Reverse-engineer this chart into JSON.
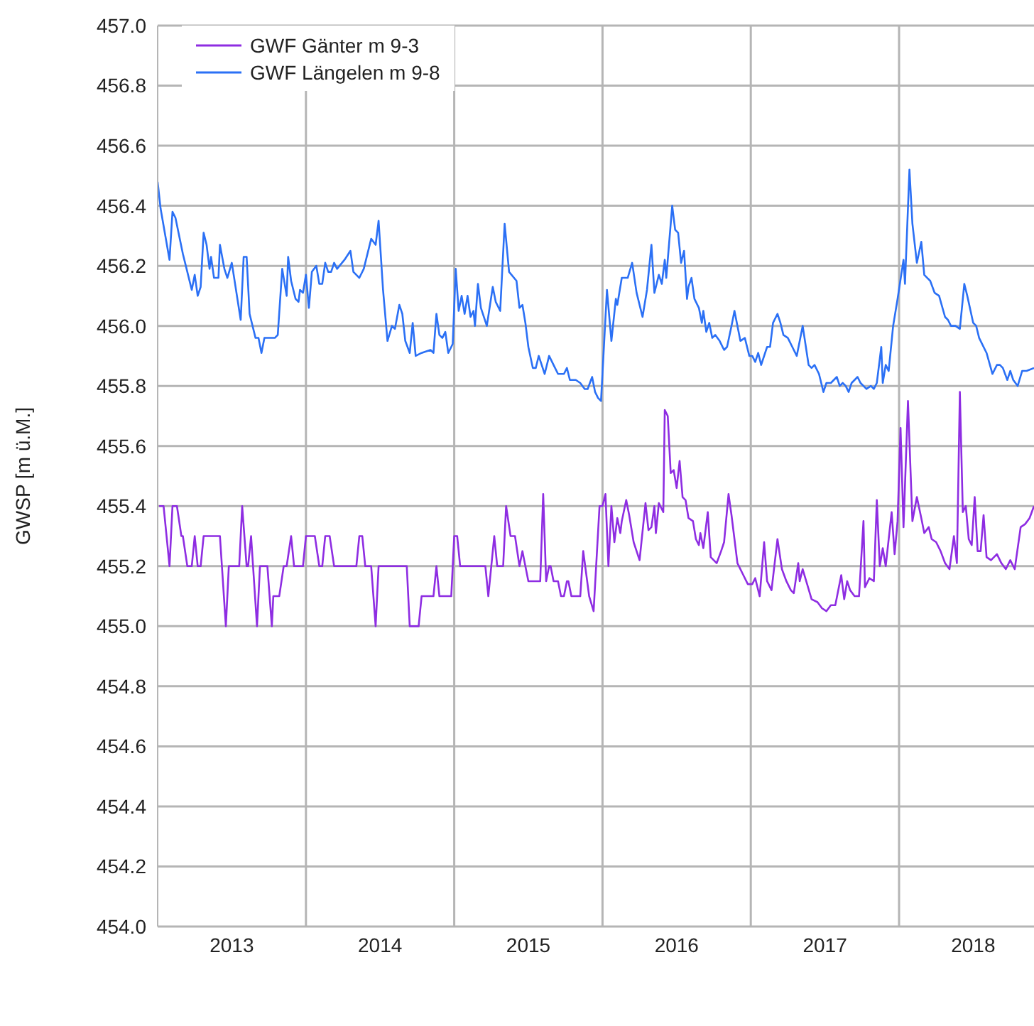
{
  "chart_data": {
    "type": "line",
    "ylabel": "GWSP  [m ü.M.]",
    "legend": "top left",
    "grid": true,
    "xlim": [
      2013,
      2018.91
    ],
    "ylim": [
      454,
      457
    ],
    "xticks": [
      {
        "value": 2013.5,
        "label": "2013"
      },
      {
        "value": 2014,
        "label": null
      },
      {
        "value": 2014.5,
        "label": "2014"
      },
      {
        "value": 2015,
        "label": null
      },
      {
        "value": 2015.5,
        "label": "2015"
      },
      {
        "value": 2016,
        "label": null
      },
      {
        "value": 2016.5,
        "label": "2016"
      },
      {
        "value": 2017,
        "label": null
      },
      {
        "value": 2017.5,
        "label": "2017"
      },
      {
        "value": 2018,
        "label": null
      },
      {
        "value": 2018.5,
        "label": "2018"
      }
    ],
    "yticks": [
      {
        "value": 454,
        "label": "454.0"
      },
      454.2,
      454.4,
      454.6,
      454.8,
      {
        "value": 455,
        "label": "455.0"
      },
      455.2,
      455.4,
      455.6,
      455.8,
      {
        "value": 456,
        "label": "456.0"
      },
      456.2,
      456.4,
      456.6,
      456.8,
      {
        "value": 457,
        "label": "457.0"
      }
    ],
    "series": [
      {
        "name": "GWF Gänter m 9-3",
        "color": "#8e2de2",
        "x": [
          2013.01,
          2013.04,
          2013.08,
          2013.1,
          2013.13,
          2013.16,
          2013.17,
          2013.2,
          2013.23,
          2013.25,
          2013.27,
          2013.29,
          2013.31,
          2013.42,
          2013.46,
          2013.48,
          2013.55,
          2013.57,
          2013.6,
          2013.61,
          2013.63,
          2013.67,
          2013.69,
          2013.74,
          2013.77,
          2013.78,
          2013.82,
          2013.85,
          2013.87,
          2013.9,
          2013.92,
          2013.98,
          2014.0,
          2014.06,
          2014.09,
          2014.11,
          2014.13,
          2014.16,
          2014.19,
          2014.34,
          2014.36,
          2014.38,
          2014.4,
          2014.44,
          2014.47,
          2014.49,
          2014.68,
          2014.7,
          2014.76,
          2014.78,
          2014.86,
          2014.88,
          2014.9,
          2014.98,
          2015.0,
          2015.02,
          2015.04,
          2015.21,
          2015.23,
          2015.27,
          2015.29,
          2015.33,
          2015.35,
          2015.38,
          2015.41,
          2015.44,
          2015.46,
          2015.5,
          2015.58,
          2015.6,
          2015.62,
          2015.64,
          2015.65,
          2015.67,
          2015.7,
          2015.72,
          2015.74,
          2015.76,
          2015.77,
          2015.79,
          2015.85,
          2015.87,
          2015.91,
          2015.94,
          2015.98,
          2016.0,
          2016.02,
          2016.04,
          2016.06,
          2016.08,
          2016.1,
          2016.12,
          2016.13,
          2016.16,
          2016.18,
          2016.21,
          2016.25,
          2016.29,
          2016.31,
          2016.33,
          2016.35,
          2016.36,
          2016.38,
          2016.41,
          2016.42,
          2016.44,
          2016.46,
          2016.48,
          2016.5,
          2016.52,
          2016.54,
          2016.56,
          2016.58,
          2016.61,
          2016.63,
          2016.65,
          2016.66,
          2016.68,
          2016.71,
          2016.73,
          2016.77,
          2016.8,
          2016.82,
          2016.85,
          2016.87,
          2016.91,
          2016.95,
          2016.98,
          2017.01,
          2017.03,
          2017.06,
          2017.09,
          2017.11,
          2017.14,
          2017.18,
          2017.21,
          2017.24,
          2017.27,
          2017.29,
          2017.32,
          2017.33,
          2017.35,
          2017.38,
          2017.41,
          2017.45,
          2017.48,
          2017.51,
          2017.54,
          2017.57,
          2017.61,
          2017.63,
          2017.65,
          2017.67,
          2017.7,
          2017.73,
          2017.76,
          2017.77,
          2017.8,
          2017.83,
          2017.85,
          2017.87,
          2017.89,
          2017.91,
          2017.95,
          2017.97,
          2017.99,
          2018.01,
          2018.03,
          2018.06,
          2018.09,
          2018.12,
          2018.15,
          2018.17,
          2018.2,
          2018.22,
          2018.25,
          2018.28,
          2018.31,
          2018.34,
          2018.37,
          2018.39,
          2018.41,
          2018.43,
          2018.45,
          2018.47,
          2018.49,
          2018.51,
          2018.53,
          2018.55,
          2018.57,
          2018.59,
          2018.62,
          2018.66,
          2018.69,
          2018.72,
          2018.75,
          2018.78,
          2018.82,
          2018.85,
          2018.88,
          2018.91
        ],
        "values": [
          455.4,
          455.4,
          455.2,
          455.4,
          455.4,
          455.3,
          455.3,
          455.2,
          455.2,
          455.3,
          455.2,
          455.2,
          455.3,
          455.3,
          455.0,
          455.2,
          455.2,
          455.4,
          455.2,
          455.2,
          455.3,
          455.0,
          455.2,
          455.2,
          455.0,
          455.1,
          455.1,
          455.2,
          455.2,
          455.3,
          455.2,
          455.2,
          455.3,
          455.3,
          455.2,
          455.2,
          455.3,
          455.3,
          455.2,
          455.2,
          455.3,
          455.3,
          455.2,
          455.2,
          455.0,
          455.2,
          455.2,
          455.0,
          455.0,
          455.1,
          455.1,
          455.2,
          455.1,
          455.1,
          455.3,
          455.3,
          455.2,
          455.2,
          455.1,
          455.3,
          455.2,
          455.2,
          455.4,
          455.3,
          455.3,
          455.2,
          455.25,
          455.15,
          455.15,
          455.44,
          455.15,
          455.2,
          455.2,
          455.15,
          455.15,
          455.1,
          455.1,
          455.15,
          455.15,
          455.1,
          455.1,
          455.25,
          455.1,
          455.05,
          455.4,
          455.4,
          455.44,
          455.2,
          455.4,
          455.28,
          455.36,
          455.31,
          455.35,
          455.42,
          455.37,
          455.28,
          455.22,
          455.41,
          455.32,
          455.33,
          455.4,
          455.31,
          455.41,
          455.38,
          455.72,
          455.7,
          455.51,
          455.52,
          455.46,
          455.55,
          455.43,
          455.42,
          455.36,
          455.35,
          455.29,
          455.27,
          455.31,
          455.26,
          455.38,
          455.23,
          455.21,
          455.25,
          455.28,
          455.44,
          455.37,
          455.21,
          455.17,
          455.14,
          455.14,
          455.16,
          455.1,
          455.28,
          455.15,
          455.12,
          455.29,
          455.19,
          455.15,
          455.12,
          455.11,
          455.21,
          455.15,
          455.19,
          455.14,
          455.09,
          455.08,
          455.06,
          455.05,
          455.07,
          455.07,
          455.17,
          455.09,
          455.15,
          455.12,
          455.1,
          455.1,
          455.35,
          455.13,
          455.16,
          455.15,
          455.42,
          455.2,
          455.26,
          455.2,
          455.38,
          455.24,
          455.35,
          455.66,
          455.33,
          455.75,
          455.35,
          455.43,
          455.36,
          455.31,
          455.33,
          455.29,
          455.28,
          455.25,
          455.21,
          455.19,
          455.3,
          455.21,
          455.78,
          455.38,
          455.4,
          455.29,
          455.27,
          455.43,
          455.25,
          455.25,
          455.37,
          455.23,
          455.22,
          455.24,
          455.21,
          455.19,
          455.22,
          455.19,
          455.33,
          455.34,
          455.36,
          455.4
        ]
      },
      {
        "name": "GWF Längelen m 9-8",
        "color": "#2b70f5",
        "x": [
          2013.0,
          2013.02,
          2013.08,
          2013.1,
          2013.12,
          2013.17,
          2013.19,
          2013.23,
          2013.25,
          2013.27,
          2013.29,
          2013.31,
          2013.33,
          2013.35,
          2013.36,
          2013.38,
          2013.41,
          2013.42,
          2013.45,
          2013.47,
          2013.5,
          2013.56,
          2013.58,
          2013.6,
          2013.62,
          2013.66,
          2013.68,
          2013.7,
          2013.72,
          2013.79,
          2013.81,
          2013.84,
          2013.87,
          2013.88,
          2013.9,
          2013.93,
          2013.95,
          2013.96,
          2013.98,
          2014.0,
          2014.02,
          2014.04,
          2014.07,
          2014.09,
          2014.11,
          2014.13,
          2014.15,
          2014.17,
          2014.19,
          2014.21,
          2014.26,
          2014.3,
          2014.32,
          2014.36,
          2014.39,
          2014.44,
          2014.47,
          2014.49,
          2014.52,
          2014.55,
          2014.58,
          2014.6,
          2014.63,
          2014.65,
          2014.67,
          2014.7,
          2014.72,
          2014.74,
          2014.78,
          2014.84,
          2014.86,
          2014.88,
          2014.9,
          2014.92,
          2014.94,
          2014.96,
          2014.99,
          2015.01,
          2015.03,
          2015.05,
          2015.07,
          2015.09,
          2015.11,
          2015.13,
          2015.14,
          2015.16,
          2015.18,
          2015.22,
          2015.26,
          2015.28,
          2015.31,
          2015.34,
          2015.37,
          2015.42,
          2015.44,
          2015.46,
          2015.48,
          2015.5,
          2015.53,
          2015.55,
          2015.57,
          2015.61,
          2015.64,
          2015.67,
          2015.7,
          2015.74,
          2015.76,
          2015.78,
          2015.82,
          2015.85,
          2015.88,
          2015.9,
          2015.93,
          2015.95,
          2015.97,
          2015.99,
          2016.03,
          2016.06,
          2016.09,
          2016.1,
          2016.13,
          2016.17,
          2016.2,
          2016.23,
          2016.27,
          2016.3,
          2016.33,
          2016.35,
          2016.38,
          2016.4,
          2016.42,
          2016.43,
          2016.47,
          2016.49,
          2016.51,
          2016.53,
          2016.55,
          2016.57,
          2016.58,
          2016.6,
          2016.62,
          2016.65,
          2016.67,
          2016.68,
          2016.7,
          2016.72,
          2016.74,
          2016.76,
          2016.79,
          2016.82,
          2016.84,
          2016.87,
          2016.89,
          2016.91,
          2016.93,
          2016.96,
          2016.99,
          2017.01,
          2017.03,
          2017.05,
          2017.07,
          2017.11,
          2017.13,
          2017.15,
          2017.18,
          2017.2,
          2017.22,
          2017.25,
          2017.28,
          2017.31,
          2017.35,
          2017.39,
          2017.41,
          2017.43,
          2017.46,
          2017.49,
          2017.51,
          2017.54,
          2017.58,
          2017.6,
          2017.62,
          2017.64,
          2017.66,
          2017.68,
          2017.72,
          2017.74,
          2017.76,
          2017.78,
          2017.81,
          2017.83,
          2017.85,
          2017.88,
          2017.89,
          2017.91,
          2017.93,
          2017.96,
          2017.99,
          2018.03,
          2018.04,
          2018.07,
          2018.09,
          2018.12,
          2018.15,
          2018.17,
          2018.19,
          2018.21,
          2018.24,
          2018.27,
          2018.31,
          2018.33,
          2018.35,
          2018.38,
          2018.41,
          2018.44,
          2018.46,
          2018.5,
          2018.52,
          2018.54,
          2018.59,
          2018.63,
          2018.66,
          2018.68,
          2018.7,
          2018.73,
          2018.75,
          2018.77,
          2018.8,
          2018.83,
          2018.86,
          2018.91
        ],
        "values": [
          456.48,
          456.39,
          456.22,
          456.38,
          456.36,
          456.24,
          456.2,
          456.12,
          456.17,
          456.1,
          456.13,
          456.31,
          456.27,
          456.19,
          456.23,
          456.16,
          456.16,
          456.27,
          456.19,
          456.16,
          456.21,
          456.02,
          456.23,
          456.23,
          456.04,
          455.96,
          455.96,
          455.91,
          455.96,
          455.96,
          455.97,
          456.19,
          456.1,
          456.23,
          456.15,
          456.09,
          456.08,
          456.12,
          456.11,
          456.17,
          456.06,
          456.18,
          456.2,
          456.14,
          456.14,
          456.21,
          456.18,
          456.18,
          456.21,
          456.19,
          456.22,
          456.25,
          456.18,
          456.16,
          456.19,
          456.29,
          456.27,
          456.35,
          456.12,
          455.95,
          456.0,
          455.99,
          456.07,
          456.04,
          455.95,
          455.91,
          456.01,
          455.9,
          455.91,
          455.92,
          455.91,
          456.04,
          455.97,
          455.96,
          455.98,
          455.91,
          455.94,
          456.19,
          456.05,
          456.1,
          456.04,
          456.1,
          456.03,
          456.05,
          456.0,
          456.14,
          456.06,
          456.0,
          456.13,
          456.08,
          456.05,
          456.34,
          456.18,
          456.15,
          456.06,
          456.07,
          456.01,
          455.93,
          455.86,
          455.86,
          455.9,
          455.84,
          455.9,
          455.87,
          455.84,
          455.84,
          455.86,
          455.82,
          455.82,
          455.81,
          455.79,
          455.79,
          455.83,
          455.78,
          455.76,
          455.75,
          456.12,
          455.95,
          456.09,
          456.07,
          456.16,
          456.16,
          456.21,
          456.11,
          456.03,
          456.12,
          456.27,
          456.11,
          456.17,
          456.14,
          456.22,
          456.16,
          456.4,
          456.32,
          456.31,
          456.21,
          456.25,
          456.09,
          456.13,
          456.16,
          456.09,
          456.06,
          456.01,
          456.05,
          455.98,
          456.01,
          455.96,
          455.97,
          455.95,
          455.92,
          455.93,
          456.0,
          456.05,
          456.0,
          455.95,
          455.96,
          455.9,
          455.9,
          455.88,
          455.91,
          455.87,
          455.93,
          455.93,
          456.01,
          456.04,
          456.01,
          455.97,
          455.96,
          455.93,
          455.9,
          456.0,
          455.87,
          455.86,
          455.87,
          455.84,
          455.78,
          455.81,
          455.81,
          455.83,
          455.8,
          455.81,
          455.8,
          455.78,
          455.81,
          455.83,
          455.81,
          455.8,
          455.79,
          455.8,
          455.79,
          455.81,
          455.93,
          455.81,
          455.87,
          455.85,
          456.0,
          456.09,
          456.22,
          456.14,
          456.52,
          456.34,
          456.21,
          456.28,
          456.17,
          456.16,
          456.15,
          456.11,
          456.1,
          456.03,
          456.02,
          456.0,
          456.0,
          455.99,
          456.14,
          456.1,
          456.01,
          456.0,
          455.96,
          455.91,
          455.84,
          455.87,
          455.87,
          455.86,
          455.82,
          455.85,
          455.82,
          455.8,
          455.85,
          455.85,
          455.86
        ]
      }
    ]
  }
}
